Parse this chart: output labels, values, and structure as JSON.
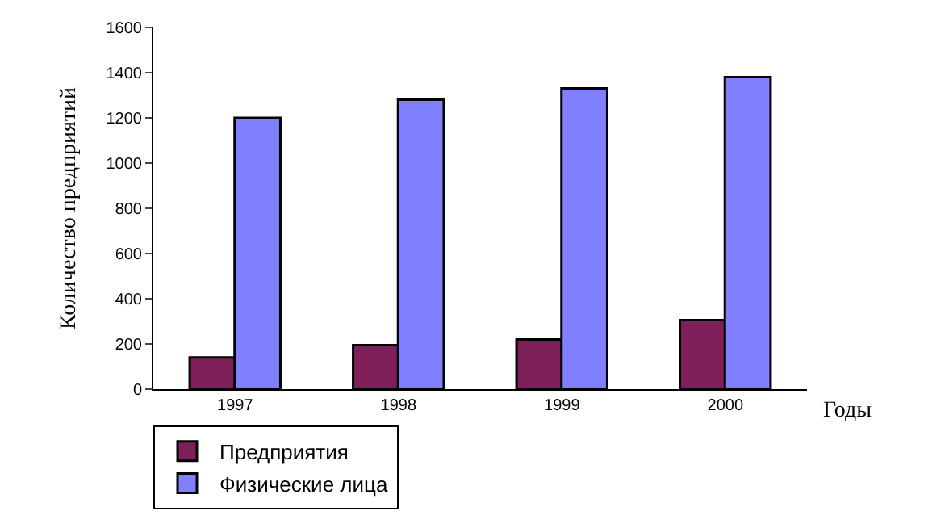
{
  "chart_data": {
    "type": "bar",
    "xlabel": "Годы",
    "ylabel": "Количество предприятий",
    "categories": [
      "1997",
      "1998",
      "1999",
      "2000"
    ],
    "series": [
      {
        "name": "Предприятия",
        "color": "#7f1f5a",
        "values": [
          140,
          195,
          220,
          305
        ]
      },
      {
        "name": "Физические лица",
        "color": "#8080ff",
        "values": [
          1200,
          1280,
          1330,
          1380
        ]
      }
    ],
    "ylim": [
      0,
      1600
    ],
    "yticks": [
      0,
      200,
      400,
      600,
      800,
      1000,
      1200,
      1400,
      1600
    ],
    "legend": "bottom"
  }
}
